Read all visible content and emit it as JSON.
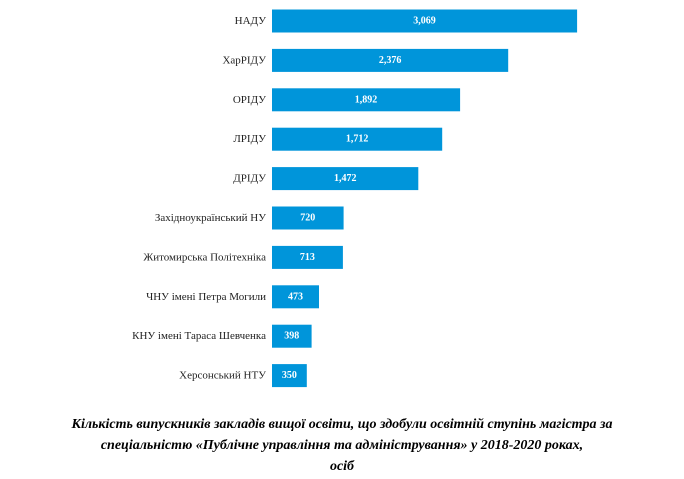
{
  "chart_data": {
    "type": "bar",
    "orientation": "horizontal",
    "categories": [
      "НАДУ",
      "ХарРІДУ",
      "ОРІДУ",
      "ЛРІДУ",
      "ДРІДУ",
      "Західноукраїнський НУ",
      "Житомирська Політехніка",
      "ЧНУ імені Петра Могили",
      "КНУ імені Тараса Шевченка",
      "Херсонський НТУ"
    ],
    "values": [
      3069,
      2376,
      1892,
      1712,
      1472,
      720,
      713,
      473,
      398,
      350
    ],
    "value_labels": [
      "3,069",
      "2,376",
      "1,892",
      "1,712",
      "1,472",
      "720",
      "713",
      "473",
      "398",
      "350"
    ],
    "bar_color": "#0095da",
    "grid": false,
    "legend": "none"
  },
  "caption": {
    "line1": "Кількість випускників закладів вищої освіти, що здобули освітній ступінь магістра за",
    "line2": "спеціальністю «Публічне управління та адміністрування» у 2018-2020 роках,",
    "line3": "осіб"
  }
}
